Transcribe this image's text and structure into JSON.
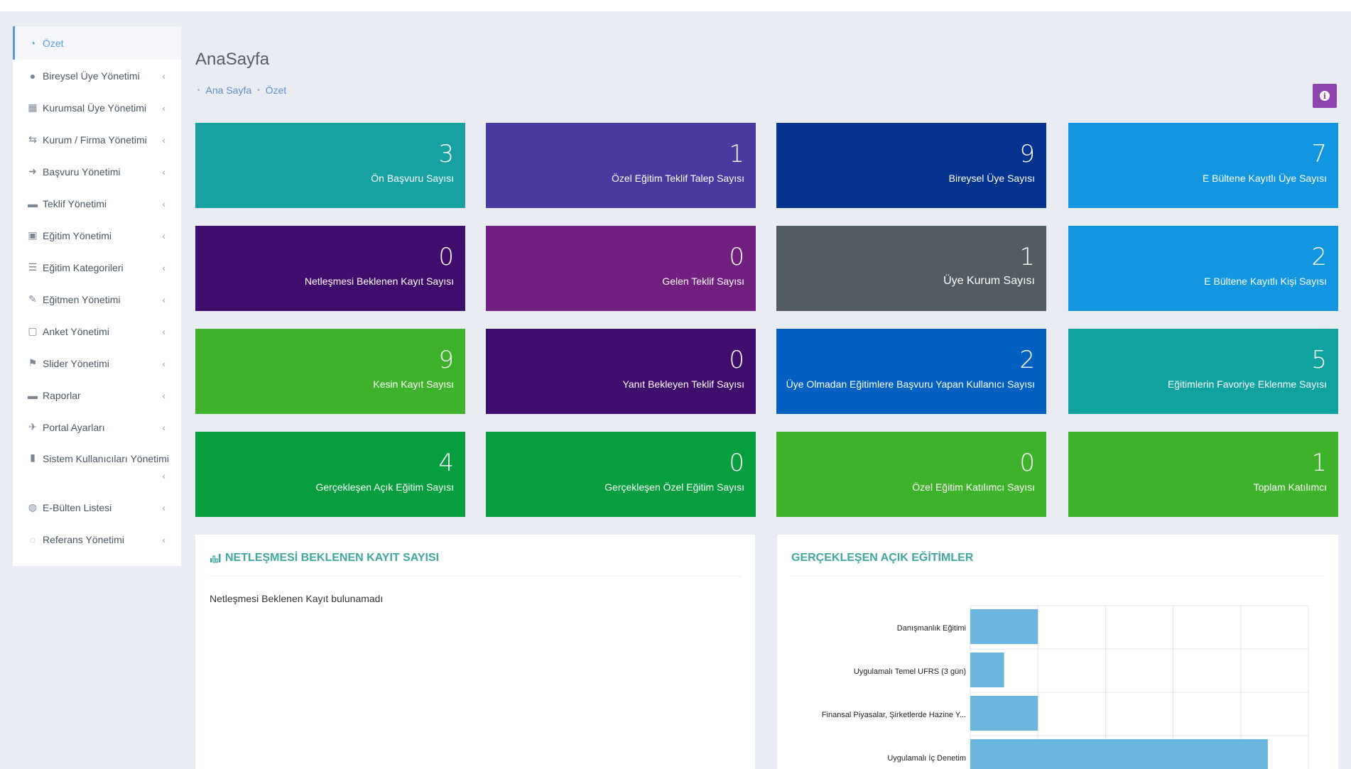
{
  "sidebar": {
    "items": [
      {
        "label": "Özet",
        "icon": "dashboard-icon",
        "active": true
      },
      {
        "label": "Bireysel Üye Yönetimi",
        "icon": "user-icon"
      },
      {
        "label": "Kurumsal Üye Yönetimi",
        "icon": "building-icon"
      },
      {
        "label": "Kurum / Firma Yönetimi",
        "icon": "handshake-icon"
      },
      {
        "label": "Başvuru Yönetimi",
        "icon": "sign-in-icon"
      },
      {
        "label": "Teklif Yönetimi",
        "icon": "briefcase-icon"
      },
      {
        "label": "Eğitim Yönetimi",
        "icon": "contact-card-icon"
      },
      {
        "label": "Eğitim Kategorileri",
        "icon": "list-icon"
      },
      {
        "label": "Eğitmen Yönetimi",
        "icon": "pencil-icon"
      },
      {
        "label": "Anket Yönetimi",
        "icon": "calendar-icon"
      },
      {
        "label": "Slider Yönetimi",
        "icon": "flag-icon"
      },
      {
        "label": "Raporlar",
        "icon": "briefcase-icon"
      },
      {
        "label": "Portal Ayarları",
        "icon": "wrench-icon"
      },
      {
        "label": "Sistem Kullanıcıları Yönetimi",
        "icon": "lock-icon"
      },
      {
        "label": "E-Bülten Listesi",
        "icon": "globe-icon"
      },
      {
        "label": "Referans Yönetimi",
        "icon": "comment-icon"
      }
    ],
    "chevron": "‹"
  },
  "header": {
    "title": "AnaSayfa",
    "breadcrumb": [
      "Ana Sayfa",
      "Özet"
    ]
  },
  "tiles": [
    {
      "value": "3",
      "label": "Ön Başvuru Sayısı",
      "color": "#17a2a1"
    },
    {
      "value": "1",
      "label": "Özel Eğitim Teklif Talep Sayısı",
      "color": "#4a3aa0"
    },
    {
      "value": "9",
      "label": "Bireysel Üye Sayısı",
      "color": "#04348f"
    },
    {
      "value": "7",
      "label": "E Bültene Kayıtlı Üye Sayısı",
      "color": "#1396e0"
    },
    {
      "value": "0",
      "label": "Netleşmesi Beklenen Kayıt Sayısı",
      "color": "#3f0d6b"
    },
    {
      "value": "0",
      "label": "Gelen Teklif Sayısı",
      "color": "#72207f"
    },
    {
      "value": "1",
      "label": "Üye Kurum Sayısı",
      "color": "#525c63"
    },
    {
      "value": "2",
      "label": "E Bültene Kayıtlı Kişi Sayısı",
      "color": "#1396e0"
    },
    {
      "value": "9",
      "label": "Kesin Kayıt Sayısı",
      "color": "#3fb22c"
    },
    {
      "value": "0",
      "label": "Yanıt Bekleyen Teklif Sayısı",
      "color": "#3f0d6b"
    },
    {
      "value": "2",
      "label": "Üye Olmadan Eğitimlere Başvuru Yapan Kullanıcı Sayısı",
      "color": "#0260c0"
    },
    {
      "value": "5",
      "label": "Eğitimlerin Favoriye Eklenme Sayısı",
      "color": "#10a29f"
    },
    {
      "value": "4",
      "label": "Gerçekleşen Açık Eğitim Sayısı",
      "color": "#079e3f"
    },
    {
      "value": "0",
      "label": "Gerçekleşen Özel Eğitim Sayısı",
      "color": "#079e3f"
    },
    {
      "value": "0",
      "label": "Özel Eğitim Katılımcı Sayısı",
      "color": "#3fb22c"
    },
    {
      "value": "1",
      "label": "Toplam Katılımcı",
      "color": "#3fb22c"
    }
  ],
  "panel_left": {
    "title": "NETLEŞMESİ BEKLENEN KAYIT SAYISI",
    "empty_text": "Netleşmesi Beklenen Kayıt bulunamadı"
  },
  "panel_right": {
    "title": "GERÇEKLEŞEN AÇIK EĞİTİMLER"
  },
  "chart_data": {
    "type": "bar",
    "orientation": "horizontal",
    "categories": [
      "Danışmanlık Eğitimi",
      "Uygulamalı Temel UFRS (3 gün)",
      "Finansal Piyasalar, Şirketlerde Hazine Y...",
      "Uygulamalı İç Denetim"
    ],
    "values": [
      1,
      0.5,
      1,
      4.4
    ],
    "xlim": [
      0,
      5
    ],
    "grid": true,
    "bar_color": "#6ab6de"
  }
}
